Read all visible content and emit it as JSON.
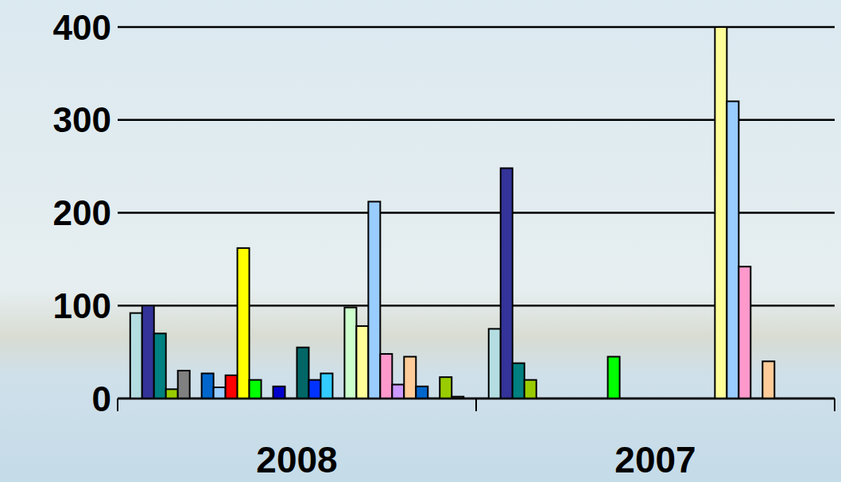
{
  "chart_data": {
    "type": "bar",
    "categories": [
      "2008",
      "2007"
    ],
    "series": [
      {
        "color": "#b4dde2",
        "values": [
          92,
          75
        ]
      },
      {
        "color": "#333399",
        "values": [
          100,
          248
        ]
      },
      {
        "color": "#008080",
        "values": [
          70,
          38
        ]
      },
      {
        "color": "#99cc00",
        "values": [
          10,
          20
        ]
      },
      {
        "color": "#808080",
        "values": [
          30,
          null
        ]
      },
      {
        "values": [
          null,
          null
        ]
      },
      {
        "color": "#0066cc",
        "values": [
          27,
          null
        ]
      },
      {
        "color": "#99ccff",
        "values": [
          12,
          null
        ]
      },
      {
        "color": "#ff0000",
        "values": [
          25,
          null
        ]
      },
      {
        "color": "#ffff00",
        "values": [
          162,
          null
        ]
      },
      {
        "color": "#00ff00",
        "values": [
          20,
          45
        ]
      },
      {
        "values": [
          null,
          null
        ]
      },
      {
        "color": "#0000cc",
        "values": [
          13,
          null
        ]
      },
      {
        "values": [
          null,
          null
        ]
      },
      {
        "color": "#006666",
        "values": [
          55,
          null
        ]
      },
      {
        "color": "#0033ff",
        "values": [
          20,
          null
        ]
      },
      {
        "color": "#33ccff",
        "values": [
          27,
          null
        ]
      },
      {
        "values": [
          null,
          null
        ]
      },
      {
        "color": "#ccffcc",
        "values": [
          98,
          null
        ]
      },
      {
        "color": "#ffff99",
        "values": [
          78,
          400
        ]
      },
      {
        "color": "#99ccff",
        "values": [
          212,
          320
        ]
      },
      {
        "color": "#ff99cc",
        "values": [
          48,
          142
        ]
      },
      {
        "color": "#cc99ff",
        "values": [
          15,
          null
        ]
      },
      {
        "color": "#ffcc99",
        "values": [
          45,
          40
        ]
      },
      {
        "color": "#0066cc",
        "values": [
          13,
          null
        ]
      },
      {
        "values": [
          null,
          null
        ]
      },
      {
        "color": "#99cc00",
        "values": [
          23,
          null
        ]
      },
      {
        "color": "#666666",
        "values": [
          2,
          null
        ]
      }
    ],
    "ylim": [
      0,
      400
    ],
    "yticks": [
      0,
      100,
      200,
      300,
      400
    ],
    "grid": true
  }
}
